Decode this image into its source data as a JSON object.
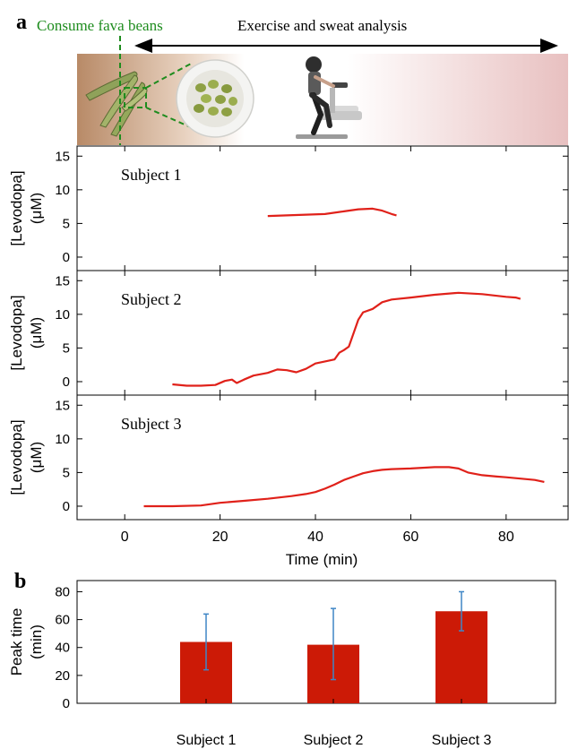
{
  "panel_a": {
    "label": "a",
    "banner": {
      "consume_label": "Consume fava beans",
      "exercise_label": "Exercise and sweat analysis"
    }
  },
  "panel_b": {
    "label": "b"
  },
  "colors": {
    "line": "#e0211a",
    "bar": "#cc1a06",
    "error": "#3f86c6",
    "green": "#1e8c1e",
    "banner_left": "#b88a67",
    "banner_right": "#e8c0c0"
  },
  "chart_data": [
    {
      "type": "line",
      "xlabel": "Time (min)",
      "ylabel": "[Levodopa]",
      "ylabel_unit": "(μM)",
      "xlim": [
        -10,
        93
      ],
      "xticks": [
        0,
        20,
        40,
        60,
        80
      ],
      "ylim": [
        -2,
        16.5
      ],
      "yticks": [
        0,
        5,
        10,
        15
      ],
      "grid": false,
      "panels": [
        {
          "title": "Subject 1",
          "x": [
            30,
            34,
            38,
            42,
            46,
            49,
            52,
            54,
            56,
            57
          ],
          "y": [
            6.1,
            6.2,
            6.3,
            6.4,
            6.8,
            7.1,
            7.2,
            6.9,
            6.4,
            6.2
          ]
        },
        {
          "title": "Subject 2",
          "x": [
            10,
            13,
            16,
            19,
            21,
            22.5,
            23.5,
            25,
            27,
            30,
            32,
            34,
            36,
            38,
            40,
            42,
            44,
            45,
            46,
            47,
            48,
            49,
            50,
            52,
            54,
            56,
            60,
            65,
            70,
            75,
            80,
            82,
            83
          ],
          "y": [
            -0.4,
            -0.6,
            -0.6,
            -0.5,
            0.1,
            0.3,
            -0.2,
            0.3,
            0.9,
            1.3,
            1.8,
            1.7,
            1.4,
            1.9,
            2.7,
            3.0,
            3.3,
            4.3,
            4.7,
            5.2,
            7.2,
            9.2,
            10.3,
            10.8,
            11.8,
            12.2,
            12.5,
            12.9,
            13.2,
            13.0,
            12.6,
            12.5,
            12.3
          ]
        },
        {
          "title": "Subject 3",
          "x": [
            4,
            10,
            16,
            20,
            25,
            30,
            35,
            38,
            40,
            42,
            44,
            46,
            48,
            50,
            52,
            54,
            56,
            60,
            65,
            68,
            70,
            72,
            75,
            78,
            80,
            83,
            86,
            88
          ],
          "y": [
            0,
            0,
            0.1,
            0.5,
            0.8,
            1.1,
            1.5,
            1.8,
            2.1,
            2.6,
            3.2,
            3.9,
            4.4,
            4.9,
            5.2,
            5.4,
            5.5,
            5.6,
            5.8,
            5.8,
            5.6,
            5.0,
            4.6,
            4.4,
            4.3,
            4.1,
            3.9,
            3.6
          ]
        }
      ]
    },
    {
      "type": "bar",
      "categories": [
        "Subject 1",
        "Subject 2",
        "Subject 3"
      ],
      "values": [
        44,
        42,
        66
      ],
      "error_low": [
        24,
        17,
        52
      ],
      "error_high": [
        64,
        68,
        80
      ],
      "ylabel": "Peak time",
      "ylabel_unit": "(min)",
      "ylim": [
        0,
        88
      ],
      "yticks": [
        0,
        20,
        40,
        60,
        80
      ],
      "grid": false
    }
  ]
}
